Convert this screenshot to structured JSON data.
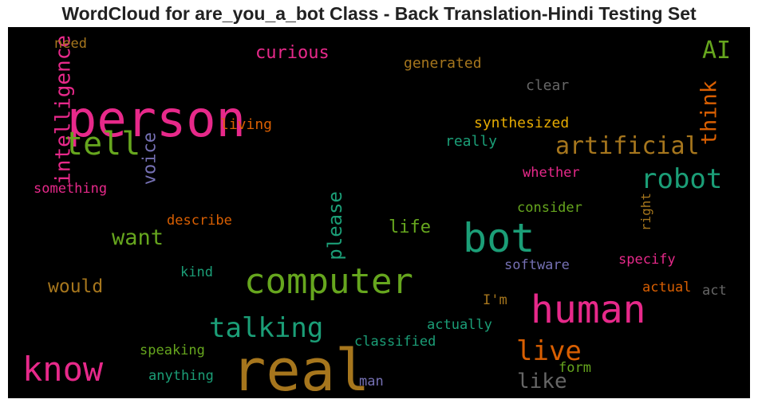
{
  "chart_data": {
    "type": "wordcloud",
    "title": "WordCloud for are_you_a_bot Class - Back Translation-Hindi Testing Set",
    "background": "#000000",
    "colormap": "Dark2",
    "words": [
      {
        "text": "real",
        "color": "#a6761d"
      },
      {
        "text": "person",
        "color": "#e7298a"
      },
      {
        "text": "bot",
        "color": "#1b9e77"
      },
      {
        "text": "human",
        "color": "#e7298a"
      },
      {
        "text": "computer",
        "color": "#66a61e"
      },
      {
        "text": "know",
        "color": "#e7298a"
      },
      {
        "text": "tell",
        "color": "#66a61e"
      },
      {
        "text": "robot",
        "color": "#1b9e77"
      },
      {
        "text": "talking",
        "color": "#1b9e77"
      },
      {
        "text": "live",
        "color": "#d95f02"
      },
      {
        "text": "artificial",
        "color": "#a6761d"
      },
      {
        "text": "intelligence",
        "color": "#e7298a"
      },
      {
        "text": "AI",
        "color": "#66a61e"
      },
      {
        "text": "think",
        "color": "#d95f02"
      },
      {
        "text": "want",
        "color": "#66a61e"
      },
      {
        "text": "please",
        "color": "#1b9e77"
      },
      {
        "text": "like",
        "color": "#666666"
      },
      {
        "text": "would",
        "color": "#a6761d"
      },
      {
        "text": "voice",
        "color": "#7570b3"
      },
      {
        "text": "curious",
        "color": "#e7298a"
      },
      {
        "text": "life",
        "color": "#66a61e"
      },
      {
        "text": "generated",
        "color": "#a6761d"
      },
      {
        "text": "synthesized",
        "color": "#e6ab02"
      },
      {
        "text": "clear",
        "color": "#666666"
      },
      {
        "text": "living",
        "color": "#d95f02"
      },
      {
        "text": "really",
        "color": "#1b9e77"
      },
      {
        "text": "whether",
        "color": "#e7298a"
      },
      {
        "text": "consider",
        "color": "#66a61e"
      },
      {
        "text": "right",
        "color": "#a6761d"
      },
      {
        "text": "describe",
        "color": "#d95f02"
      },
      {
        "text": "something",
        "color": "#e7298a"
      },
      {
        "text": "need",
        "color": "#a6761d"
      },
      {
        "text": "software",
        "color": "#7570b3"
      },
      {
        "text": "specify",
        "color": "#e7298a"
      },
      {
        "text": "kind",
        "color": "#1b9e77"
      },
      {
        "text": "actual",
        "color": "#d95f02"
      },
      {
        "text": "act",
        "color": "#666666"
      },
      {
        "text": "I'm",
        "color": "#a6761d"
      },
      {
        "text": "actually",
        "color": "#1b9e77"
      },
      {
        "text": "classified",
        "color": "#1b9e77"
      },
      {
        "text": "speaking",
        "color": "#66a61e"
      },
      {
        "text": "anything",
        "color": "#1b9e77"
      },
      {
        "text": "man",
        "color": "#7570b3"
      },
      {
        "text": "form",
        "color": "#66a61e"
      }
    ]
  }
}
